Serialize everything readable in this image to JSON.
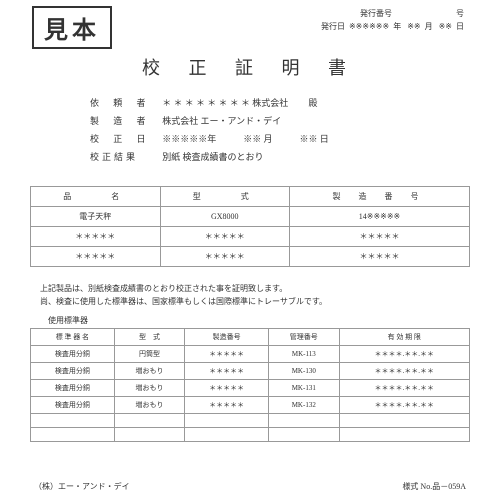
{
  "sample_stamp": "見本",
  "header": {
    "issue_no_label": "発行番号",
    "issue_no_suffix": "号",
    "issue_date_label": "発行日",
    "date_mask": "※※※※※※",
    "year": "年",
    "month_mask": "※※",
    "month": "月",
    "day_mask": "※※",
    "day": "日"
  },
  "title": "校 正 証 明 書",
  "info": {
    "requester_label": "依 頼 者",
    "requester_value": "＊ ＊ ＊ ＊ ＊ ＊ ＊ ＊ 株式会社",
    "requester_suffix": "殿",
    "maker_label": "製 造 者",
    "maker_value": "株式会社 エー・アンド・デイ",
    "cal_date_label": "校 正 日",
    "cal_date_value": "※※※※※年　　　※※ 月　　　※※ 日",
    "result_label": "校正結果",
    "result_value": "別紙 検査成績書のとおり"
  },
  "table1": {
    "headers": [
      "品　　名",
      "型　　式",
      "製 造 番 号"
    ],
    "rows": [
      [
        "電子天秤",
        "GX8000",
        "14※※※※※"
      ],
      [
        "＊＊＊＊＊",
        "＊＊＊＊＊",
        "＊＊＊＊＊"
      ],
      [
        "＊＊＊＊＊",
        "＊＊＊＊＊",
        "＊＊＊＊＊"
      ]
    ]
  },
  "note_line1": "上記製品は、別紙検査成績書のとおり校正された事を証明致します。",
  "note_line2": "尚、検査に使用した標準器は、国家標準もしくは国際標準にトレーサブルです。",
  "sub_title": "使用標準器",
  "table2": {
    "headers": [
      "標 準 器 名",
      "型　式",
      "製造番号",
      "管理番号",
      "有 効 期 限"
    ],
    "rows": [
      [
        "検査用分銅",
        "円筒型",
        "＊＊＊＊＊",
        "MK-113",
        "＊＊＊＊.＊＊.＊＊"
      ],
      [
        "検査用分銅",
        "増おもり",
        "＊＊＊＊＊",
        "MK-130",
        "＊＊＊＊.＊＊.＊＊"
      ],
      [
        "検査用分銅",
        "増おもり",
        "＊＊＊＊＊",
        "MK-131",
        "＊＊＊＊.＊＊.＊＊"
      ],
      [
        "検査用分銅",
        "増おもり",
        "＊＊＊＊＊",
        "MK-132",
        "＊＊＊＊.＊＊.＊＊"
      ],
      [
        "",
        "",
        "",
        "",
        ""
      ],
      [
        "",
        "",
        "",
        "",
        ""
      ]
    ]
  },
  "footer": {
    "left": "（株）エー・アンド・デイ",
    "right": "様式 No.品－059A"
  }
}
